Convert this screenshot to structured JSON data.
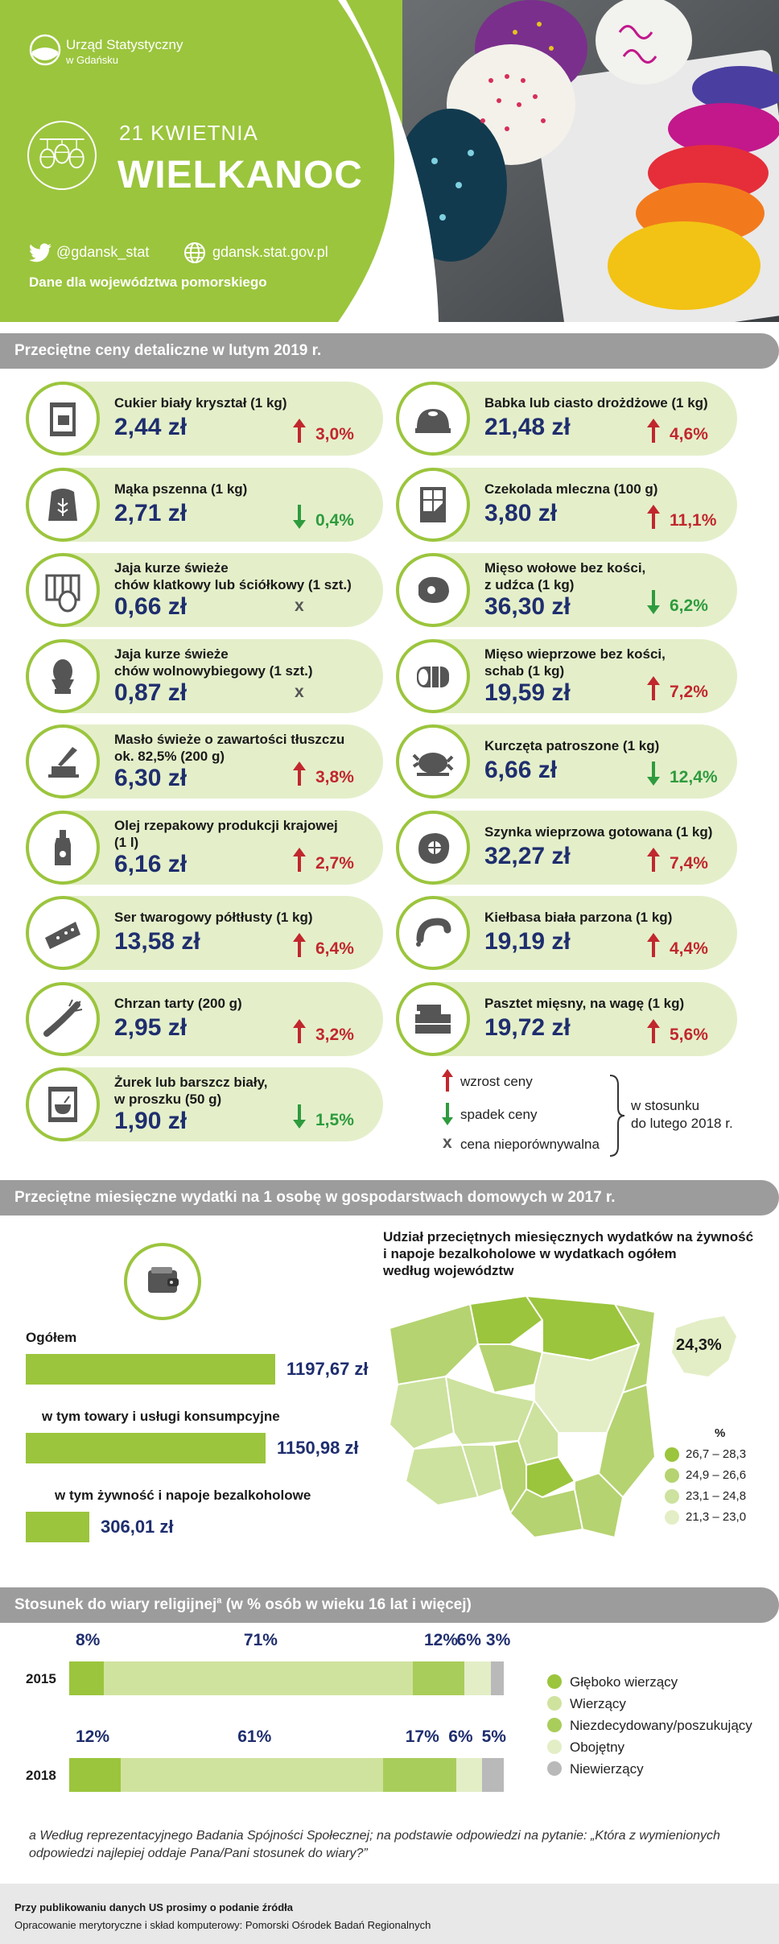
{
  "header": {
    "logo_line1": "Urząd Statystyczny",
    "logo_line2": "w Gdańsku",
    "date": "21 KWIETNIA",
    "title": "WIELKANOC",
    "twitter": "@gdansk_stat",
    "website": "gdansk.stat.gov.pl",
    "region_note": "Dane dla województwa pomorskiego"
  },
  "colors": {
    "brand_green": "#9bc53d",
    "card_bg": "#e4efca",
    "price_blue": "#1f2e6e",
    "up_red": "#c1272d",
    "down_green": "#2e9b3e"
  },
  "prices": {
    "title": "Przeciętne ceny detaliczne w lutym 2019 r.",
    "left": [
      {
        "name": "Cukier biały kryształ (1 kg)",
        "price": "2,44 zł",
        "change": "3,0%",
        "trend": "up",
        "icon": "sugar-icon"
      },
      {
        "name": "Mąka pszenna (1 kg)",
        "price": "2,71 zł",
        "change": "0,4%",
        "trend": "down",
        "icon": "flour-icon"
      },
      {
        "name": "Jaja kurze świeże\nchów klatkowy lub ściółkowy (1 szt.)",
        "price": "0,66 zł",
        "change": "x",
        "trend": "na",
        "icon": "eggs-cage-icon"
      },
      {
        "name": "Jaja kurze świeże\nchów wolnowybiegowy (1 szt.)",
        "price": "0,87 zł",
        "change": "x",
        "trend": "na",
        "icon": "egg-cup-icon"
      },
      {
        "name": "Masło świeże o zawartości tłuszczu\nok. 82,5% (200 g)",
        "price": "6,30 zł",
        "change": "3,8%",
        "trend": "up",
        "icon": "butter-icon"
      },
      {
        "name": "Olej rzepakowy produkcji krajowej\n(1 l)",
        "price": "6,16 zł",
        "change": "2,7%",
        "trend": "up",
        "icon": "oil-bottle-icon"
      },
      {
        "name": "Ser twarogowy półtłusty (1 kg)",
        "price": "13,58 zł",
        "change": "6,4%",
        "trend": "up",
        "icon": "cottage-cheese-icon"
      },
      {
        "name": "Chrzan tarty (200 g)",
        "price": "2,95 zł",
        "change": "3,2%",
        "trend": "up",
        "icon": "horseradish-icon"
      },
      {
        "name": "Żurek lub barszcz biały,\nw proszku (50 g)",
        "price": "1,90 zł",
        "change": "1,5%",
        "trend": "down",
        "icon": "soup-packet-icon"
      }
    ],
    "right": [
      {
        "name": "Babka lub ciasto drożdżowe (1 kg)",
        "price": "21,48 zł",
        "change": "4,6%",
        "trend": "up",
        "icon": "babka-cake-icon"
      },
      {
        "name": "Czekolada mleczna (100 g)",
        "price": "3,80 zł",
        "change": "11,1%",
        "trend": "up",
        "icon": "chocolate-icon"
      },
      {
        "name": "Mięso wołowe bez kości,\nz udźca (1 kg)",
        "price": "36,30 zł",
        "change": "6,2%",
        "trend": "down",
        "icon": "beef-icon"
      },
      {
        "name": "Mięso wieprzowe bez kości,\nschab (1 kg)",
        "price": "19,59 zł",
        "change": "7,2%",
        "trend": "up",
        "icon": "pork-loin-icon"
      },
      {
        "name": "Kurczęta patroszone (1 kg)",
        "price": "6,66 zł",
        "change": "12,4%",
        "trend": "down",
        "icon": "chicken-icon"
      },
      {
        "name": "Szynka wieprzowa gotowana (1 kg)",
        "price": "32,27 zł",
        "change": "7,4%",
        "trend": "up",
        "icon": "ham-icon"
      },
      {
        "name": "Kiełbasa biała parzona (1 kg)",
        "price": "19,19 zł",
        "change": "4,4%",
        "trend": "up",
        "icon": "sausage-icon"
      },
      {
        "name": "Pasztet mięsny, na wagę (1 kg)",
        "price": "19,72 zł",
        "change": "5,6%",
        "trend": "up",
        "icon": "pate-icon"
      }
    ],
    "legend": {
      "up": "wzrost ceny",
      "down": "spadek ceny",
      "na_symbol": "x",
      "na": "cena nieporównywalna",
      "ref_line1": "w stosunku",
      "ref_line2": "do lutego 2018 r."
    }
  },
  "spending": {
    "title": "Przeciętne miesięczne wydatki na 1 osobę w gospodarstwach domowych w 2017 r.",
    "bars": [
      {
        "label": "Ogółem",
        "value": 1197.67,
        "value_label": "1197,67 zł"
      },
      {
        "label": "w tym towary i usługi konsumpcyjne",
        "value": 1150.98,
        "value_label": "1150,98 zł"
      },
      {
        "label": "w tym żywność i napoje bezalkoholowe",
        "value": 306.01,
        "value_label": "306,01 zł"
      }
    ],
    "map_title": "Udział przeciętnych miesięcznych wydatków na żywność\ni napoje bezalkoholowe w wydatkach ogółem\nwedług województw",
    "pomorskie_value": "24,3%",
    "legend_unit": "%",
    "legend": [
      {
        "label": "26,7 – 28,3",
        "color": "#9bc53d"
      },
      {
        "label": "24,9 – 26,6",
        "color": "#b5d370"
      },
      {
        "label": "23,1 – 24,8",
        "color": "#cde29e"
      },
      {
        "label": "21,3 – 23,0",
        "color": "#e3eec6"
      }
    ]
  },
  "religion": {
    "title": "Stosunek do wiary religijnej",
    "title_sup": "a",
    "title_suffix": " (w % osób w wieku 16 lat i więcej)",
    "categories": [
      "Głęboko wierzący",
      "Wierzący",
      "Niezdecydowany/poszukujący",
      "Obojętny",
      "Niewierzący"
    ],
    "colors": [
      "#9bc53d",
      "#cfe39e",
      "#a9cd5a",
      "#e3eec6",
      "#b9b9b9"
    ],
    "rows": [
      {
        "year": "2015",
        "values": [
          8,
          71,
          12,
          6,
          3
        ],
        "labels": [
          "8%",
          "71%",
          "12%",
          "6%",
          "3%"
        ]
      },
      {
        "year": "2018",
        "values": [
          12,
          61,
          17,
          6,
          5
        ],
        "labels": [
          "12%",
          "61%",
          "17%",
          "6%",
          "5%"
        ]
      }
    ],
    "footnote": "a Według reprezentacyjnego Badania Spójności Społecznej; na podstawie odpowiedzi na pytanie: „Która z wymienionych odpowiedzi najlepiej oddaje Pana/Pani stosunek do wiary?”"
  },
  "footer": {
    "line1": "Przy publikowaniu danych US prosimy o podanie źródła",
    "line2": "Opracowanie merytoryczne i skład komputerowy: Pomorski Ośrodek Badań Regionalnych"
  }
}
